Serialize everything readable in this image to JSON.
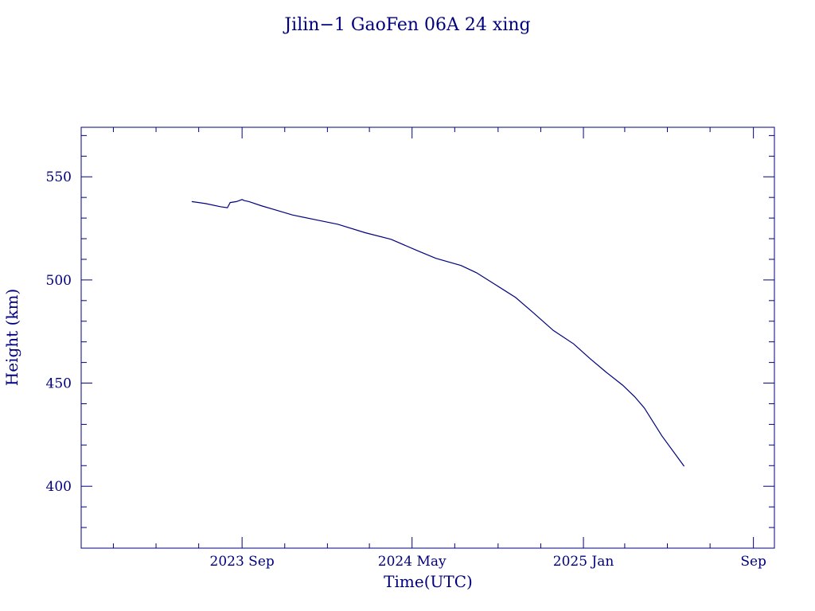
{
  "chart_data": {
    "type": "line",
    "title": "Jilin−1 GaoFen 06A 24 xing",
    "xlabel": "Time(UTC)",
    "ylabel": "Height (km)",
    "color": "#00007f",
    "grid": false,
    "legend": "none",
    "xlim": [
      "2023-01-14",
      "2025-10-01"
    ],
    "ylim": [
      370,
      574
    ],
    "x_ticks": [
      {
        "date": "2023-09-01",
        "label": "2023 Sep"
      },
      {
        "date": "2024-05-01",
        "label": "2024 May"
      },
      {
        "date": "2025-01-01",
        "label": "2025 Jan"
      },
      {
        "date": "2025-09-01",
        "label": "Sep"
      }
    ],
    "x_minor_ticks": [
      "2023-03-01",
      "2023-05-01",
      "2023-07-01",
      "2023-11-01",
      "2024-01-01",
      "2024-03-01",
      "2024-07-01",
      "2024-09-01",
      "2024-11-01",
      "2025-03-01",
      "2025-05-01",
      "2025-07-01"
    ],
    "y_ticks": [
      400,
      450,
      500,
      550
    ],
    "y_minor_ticks": [
      380,
      390,
      410,
      420,
      430,
      440,
      460,
      470,
      480,
      490,
      510,
      520,
      530,
      540,
      560,
      570
    ],
    "series": [
      {
        "x": [
          "2023-06-21",
          "2023-07-11",
          "2023-08-01",
          "2023-08-11",
          "2023-08-15",
          "2023-08-24",
          "2023-09-01",
          "2023-09-04",
          "2023-09-11",
          "2023-09-28",
          "2023-10-20",
          "2023-11-12",
          "2023-12-15",
          "2024-01-16",
          "2024-02-24",
          "2024-04-01",
          "2024-05-10",
          "2024-06-04",
          "2024-07-10",
          "2024-08-01",
          "2024-08-27",
          "2024-09-26",
          "2024-10-20",
          "2024-11-19",
          "2024-12-18",
          "2025-01-10",
          "2025-02-02",
          "2025-02-26",
          "2025-03-15",
          "2025-03-29",
          "2025-04-23",
          "2025-05-25"
        ],
        "y": [
          538,
          537,
          535.5,
          535,
          537.5,
          538,
          539,
          538.5,
          538,
          536,
          533.8,
          531.5,
          529.2,
          527,
          522.9,
          519.7,
          514,
          510.5,
          507,
          503.5,
          498,
          491.5,
          484.5,
          475.5,
          469,
          462,
          455.4,
          449,
          443.5,
          438,
          424.5,
          409.7
        ]
      }
    ]
  }
}
